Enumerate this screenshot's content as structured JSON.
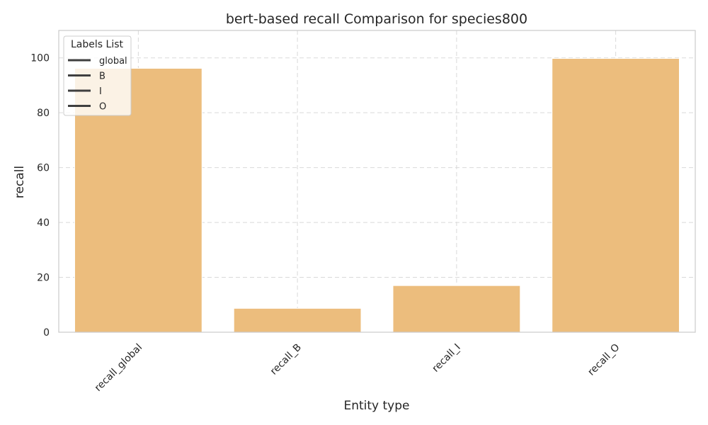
{
  "chart_data": {
    "type": "bar",
    "title": "bert-based  recall Comparison for species800",
    "xlabel": "Entity type",
    "ylabel": "recall",
    "categories": [
      "recall_global",
      "recall_B",
      "recall_I",
      "recall_O"
    ],
    "values": [
      96.2,
      8.7,
      17.0,
      99.8
    ],
    "ylim": [
      0,
      110
    ],
    "yticks": [
      0,
      20,
      40,
      60,
      80,
      100
    ],
    "grid": true,
    "bar_color": "#ECBD7D",
    "legend": {
      "title": "Labels List",
      "placement": "top-left",
      "items": [
        "global",
        "B",
        "I",
        "O"
      ],
      "line_color": "#3f3f3f"
    }
  }
}
